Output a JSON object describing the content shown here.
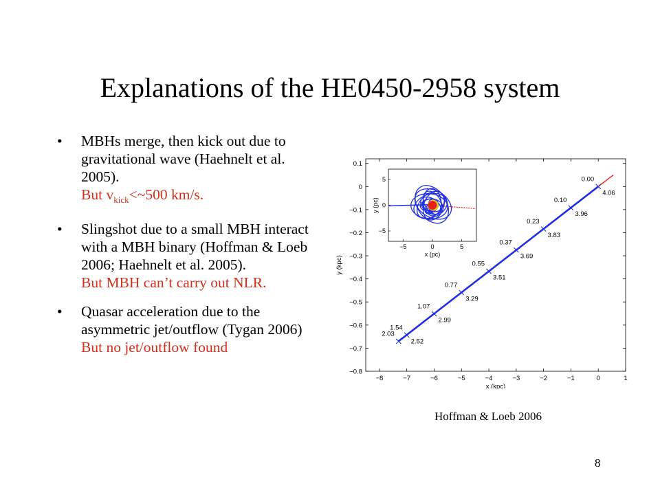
{
  "slide": {
    "title": "Explanations of the HE0450-2958 system",
    "page_number": "8",
    "credit": "Hoffman & Loeb 2006"
  },
  "bullets": [
    {
      "text": "MBHs merge, then kick out due to gravitational wave (Haehnelt et al. 2005).",
      "note_prefix": "But v",
      "note_sub": "kick",
      "note_suffix": "<~500 km/s."
    },
    {
      "text": "Slingshot due to a small MBH interact with a MBH binary (Hoffman & Loeb 2006; Haehnelt et al. 2005).",
      "note": "But MBH can’t carry out NLR."
    },
    {
      "text": "Quasar acceleration due to the asymmetric jet/outflow (Tygan 2006)",
      "note": "But no jet/outflow found"
    }
  ],
  "colors": {
    "accent_red": "#d0301c",
    "track_blue": "#1f2ee0",
    "track_red": "#e8201a",
    "inset_yellow": "#f2d80a"
  },
  "chart_data": {
    "type": "line",
    "xlabel": "x (kpc)",
    "ylabel": "y (kpc)",
    "xlim": [
      -8.5,
      1
    ],
    "ylim": [
      -0.8,
      0.12
    ],
    "xticks": [
      -8,
      -7,
      -6,
      -5,
      -4,
      -3,
      -2,
      -1,
      0,
      1
    ],
    "yticks": [
      0.1,
      0,
      -0.1,
      -0.2,
      -0.3,
      -0.4,
      -0.5,
      -0.6,
      -0.7,
      -0.8
    ],
    "xtick_labels": [
      "−8",
      "−7",
      "−6",
      "−5",
      "−4",
      "−3",
      "−2",
      "−1",
      "0",
      "1"
    ],
    "ytick_labels": [
      "0.1",
      "0",
      "−0.1",
      "−0.2",
      "−0.3",
      "−0.4",
      "−0.5",
      "−0.6",
      "−0.7",
      "−0.8"
    ],
    "trajectory": {
      "x": [
        -7.3,
        0.0
      ],
      "y": [
        -0.67,
        0.0
      ]
    },
    "extension": {
      "x": [
        0.0,
        0.55
      ],
      "y": [
        0.0,
        0.05
      ]
    },
    "markers": [
      {
        "x": 0,
        "y": 0.0,
        "left_label": "0.00",
        "right_label": "4.06"
      },
      {
        "x": -1,
        "y": -0.092,
        "left_label": "0.10",
        "right_label": "3.96"
      },
      {
        "x": -2,
        "y": -0.184,
        "left_label": "0.23",
        "right_label": "3.83"
      },
      {
        "x": -3,
        "y": -0.275,
        "left_label": "0.37",
        "right_label": "3.69"
      },
      {
        "x": -4,
        "y": -0.367,
        "left_label": "0.55",
        "right_label": "3.51"
      },
      {
        "x": -5,
        "y": -0.459,
        "left_label": "0.77",
        "right_label": "3.29"
      },
      {
        "x": -6,
        "y": -0.551,
        "left_label": "1.07",
        "right_label": "2.99"
      },
      {
        "x": -7,
        "y": -0.643,
        "left_label": "1.54",
        "right_label": "2.52"
      },
      {
        "x": -7.3,
        "y": -0.67,
        "left_label": "2.03",
        "right_label": ""
      }
    ],
    "inset": {
      "xlabel": "x (pc)",
      "ylabel": "y (pc)",
      "xlim": [
        -7.5,
        7.5
      ],
      "ylim": [
        -7,
        7
      ],
      "xticks": [
        -5,
        0,
        5
      ],
      "yticks": [
        5,
        0,
        -5
      ],
      "xtick_labels": [
        "−5",
        "0",
        "5"
      ],
      "ytick_labels": [
        "5",
        "0",
        "−5"
      ]
    }
  }
}
